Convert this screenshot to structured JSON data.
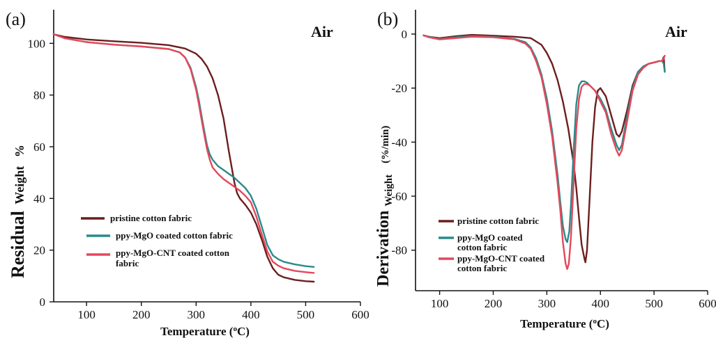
{
  "colors": {
    "pristine": "#6b1e1e",
    "mgo": "#2a8a8a",
    "cnt": "#e4485a"
  },
  "chart_data": [
    {
      "panel": "(a)",
      "type": "line",
      "annotation": "Air",
      "xlabel": "Temperature (°C)",
      "ylabel_part1": "Residual",
      "ylabel_part2": "Weight",
      "ylabel_part3": "%",
      "xlim": [
        40,
        600
      ],
      "ylim": [
        0,
        113
      ],
      "xticks": [
        100,
        200,
        300,
        400,
        500,
        600
      ],
      "yticks": [
        0,
        20,
        40,
        60,
        80,
        100
      ],
      "series": [
        {
          "name": "pristine cotton fabric",
          "color_key": "pristine",
          "x": [
            40,
            60,
            100,
            150,
            200,
            250,
            280,
            300,
            310,
            320,
            330,
            340,
            350,
            360,
            370,
            375,
            380,
            390,
            400,
            410,
            420,
            430,
            440,
            450,
            460,
            480,
            500,
            515
          ],
          "y": [
            103.5,
            102.5,
            101.5,
            100.8,
            100.2,
            99.3,
            98,
            96,
            94,
            91,
            86.5,
            80,
            71,
            58,
            46,
            42,
            40,
            37.5,
            34.5,
            30,
            24,
            17.5,
            13,
            10.5,
            9.5,
            8.5,
            8,
            7.8
          ]
        },
        {
          "name": "ppy-MgO coated cotton fabric",
          "color_key": "mgo",
          "x": [
            40,
            60,
            100,
            150,
            200,
            250,
            270,
            280,
            290,
            300,
            305,
            310,
            315,
            320,
            325,
            330,
            340,
            350,
            360,
            370,
            380,
            390,
            400,
            410,
            420,
            430,
            440,
            450,
            460,
            480,
            500,
            515
          ],
          "y": [
            103.5,
            102,
            100.5,
            99.5,
            98.8,
            97.8,
            96.5,
            94.5,
            90.5,
            83,
            78,
            72,
            66,
            60.5,
            57,
            55,
            52.5,
            51,
            49.5,
            48,
            46,
            44,
            41,
            36,
            29,
            22,
            18,
            16.5,
            15.5,
            14.5,
            13.8,
            13.5
          ]
        },
        {
          "name": "ppy-MgO-CNT coated cotton fabric",
          "color_key": "cnt",
          "x": [
            40,
            60,
            100,
            150,
            200,
            250,
            270,
            280,
            290,
            300,
            305,
            310,
            315,
            320,
            325,
            330,
            340,
            350,
            360,
            370,
            380,
            390,
            400,
            410,
            420,
            430,
            440,
            450,
            460,
            480,
            500,
            515
          ],
          "y": [
            103.5,
            102,
            100.5,
            99.5,
            98.8,
            97.8,
            96.5,
            94.5,
            90,
            82,
            76.5,
            70.5,
            64.5,
            59,
            55,
            52,
            49.5,
            47.5,
            46,
            44.5,
            43,
            41,
            38.5,
            33,
            26,
            19.5,
            15.5,
            14,
            13,
            12,
            11.5,
            11.2
          ]
        }
      ]
    },
    {
      "panel": "(b)",
      "type": "line",
      "annotation": "Air",
      "xlabel": "Temperature (°C)",
      "ylabel_part1": "Derivation",
      "ylabel_part2": "Weight",
      "ylabel_part3": "(%/min)",
      "xlim": [
        55,
        600
      ],
      "ylim": [
        -95,
        9
      ],
      "xticks": [
        100,
        200,
        300,
        400,
        500,
        600
      ],
      "yticks": [
        0,
        -20,
        -40,
        -60,
        -80
      ],
      "series": [
        {
          "name": "pristine cotton fabric",
          "color_key": "pristine",
          "x": [
            70,
            80,
            100,
            130,
            160,
            200,
            240,
            270,
            290,
            300,
            310,
            320,
            330,
            340,
            350,
            355,
            360,
            365,
            370,
            372,
            375,
            380,
            385,
            390,
            395,
            400,
            410,
            420,
            430,
            435,
            440,
            450,
            460,
            470,
            480,
            490,
            500,
            510,
            515,
            518,
            520
          ],
          "y": [
            -0.5,
            -1,
            -1.5,
            -0.8,
            -0.3,
            -0.6,
            -1,
            -1.5,
            -4,
            -7,
            -11,
            -17,
            -25,
            -35,
            -48,
            -57,
            -68,
            -78,
            -83,
            -84.5,
            -80,
            -60,
            -40,
            -27,
            -21,
            -20,
            -23,
            -30,
            -37,
            -38,
            -36,
            -28,
            -19,
            -14,
            -12,
            -11,
            -10.5,
            -10,
            -10,
            -8.5,
            -14
          ]
        },
        {
          "name": "ppy-MgO coated cotton fabric",
          "color_key": "mgo",
          "x": [
            70,
            80,
            100,
            130,
            160,
            200,
            240,
            260,
            270,
            280,
            290,
            300,
            310,
            320,
            325,
            330,
            335,
            338,
            342,
            345,
            350,
            355,
            360,
            365,
            370,
            375,
            380,
            390,
            400,
            410,
            420,
            430,
            435,
            440,
            450,
            460,
            470,
            480,
            490,
            500,
            510,
            515,
            518,
            520
          ],
          "y": [
            -0.5,
            -1,
            -1.8,
            -1.2,
            -0.7,
            -1,
            -1.8,
            -3,
            -5,
            -9,
            -15,
            -24,
            -36,
            -52,
            -62,
            -71,
            -76,
            -77,
            -73,
            -63,
            -43,
            -26,
            -19,
            -17.5,
            -17.5,
            -18,
            -19,
            -21,
            -24,
            -28,
            -35,
            -41,
            -43,
            -41,
            -30,
            -20,
            -14,
            -12,
            -11,
            -10.5,
            -10,
            -10,
            -11,
            -14
          ]
        },
        {
          "name": "ppy-MgO-CNT coated cotton fabric",
          "color_key": "cnt",
          "x": [
            70,
            80,
            100,
            130,
            160,
            200,
            240,
            260,
            270,
            280,
            290,
            300,
            310,
            320,
            325,
            330,
            335,
            338,
            341,
            345,
            350,
            355,
            360,
            365,
            370,
            375,
            380,
            390,
            400,
            410,
            420,
            430,
            435,
            440,
            450,
            460,
            470,
            480,
            490,
            500,
            510,
            515,
            518,
            520
          ],
          "y": [
            -0.5,
            -1.2,
            -2,
            -1.5,
            -1,
            -1.2,
            -2,
            -3.5,
            -5.5,
            -10,
            -16,
            -26,
            -38,
            -55,
            -65,
            -77,
            -85,
            -87,
            -85,
            -75,
            -55,
            -35,
            -24,
            -19.5,
            -18.5,
            -18.5,
            -19,
            -21,
            -25,
            -29,
            -37,
            -43,
            -45,
            -43,
            -32,
            -21,
            -15,
            -12.5,
            -11,
            -10.5,
            -10,
            -10,
            -9,
            -8
          ]
        }
      ]
    }
  ],
  "legend_a": {
    "items": [
      {
        "line1": "pristine cotton fabric",
        "line2": ""
      },
      {
        "line1": "ppy-MgO coated cotton fabric",
        "line2": ""
      },
      {
        "line1": "ppy-MgO-CNT coated cotton",
        "line2": "fabric"
      }
    ]
  },
  "legend_b": {
    "items": [
      {
        "line1": "pristine cotton fabric",
        "line2": ""
      },
      {
        "line1": "ppy-MgO coated",
        "line2": "cotton fabric"
      },
      {
        "line1": "ppy-MgO-CNT coated",
        "line2": "cotton fabric"
      }
    ]
  }
}
